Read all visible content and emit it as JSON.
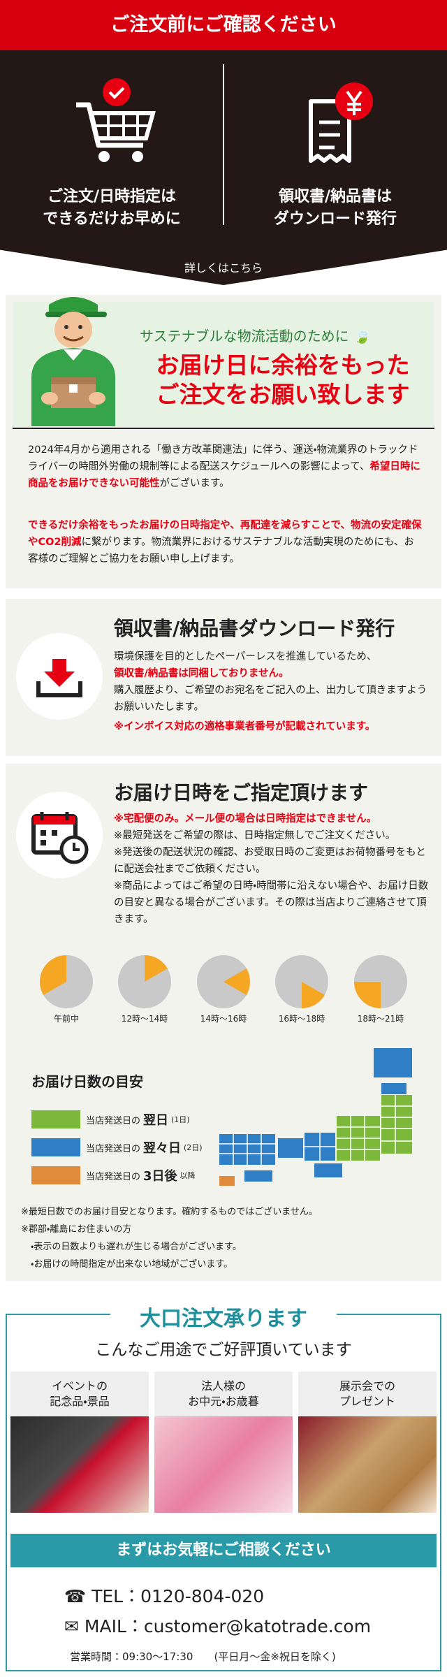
{
  "banner": {
    "title": "ご注文前にご確認ください",
    "items": [
      {
        "lines": [
          "ご注文/日時指定は",
          "できるだけお早めに"
        ]
      },
      {
        "lines": [
          "領収書/納品書は",
          "ダウンロード発行"
        ]
      }
    ],
    "link": "詳しくはこちら"
  },
  "sustainable": {
    "lead": "サステナブルな物流活動のために",
    "headline": [
      "お届け日に余裕をもった",
      "ご注文をお願い致します"
    ],
    "paragraph1": [
      "2024年4月から適用される「働き方改革関連法」に伴う、運送・物流業界のトラックドライバーの時間外労働の規制等による配送スケジュールへの影響によって、",
      "希望日時に商品をお届けできない可能性",
      "がございます。"
    ],
    "paragraph2": [
      "できるだけ余裕をもったお届けの日時指定や、再配達を減らすことで、物流の安定確保やCO2削減",
      "に繋がります。物流業界におけるサステナブルな活動実現のためにも、お客様のご理解とご協力をお願い申し上げます。"
    ]
  },
  "receipt": {
    "title": "領収書/納品書ダウンロード発行",
    "lines": [
      "環境保護を目的としたペーパーレスを推進しているため、",
      "領収書/納品書は同梱しておりません。",
      "購入履歴より、ご希望のお宛名をご記入の上、出力して頂きますようお願いいたします。",
      "※インボイス対応の適格事業者番号が記載されています。"
    ]
  },
  "delivery": {
    "title": "お届け日時をご指定頂けます",
    "notes": [
      "※宅配便のみ。メール便の場合は日時指定はできません。",
      "※最短発送をご希望の際は、日時指定無しでご注文ください。",
      "※発送後の配送状況の確認、お受取日時のご変更はお荷物番号をもとに配送会社までご依頼ください。",
      "※商品によってはご希望の日時・時間帯に沿えない場合や、お届け日数の目安と異なる場合がございます。その際は当店よりご連絡させて頂きます。"
    ],
    "slots": [
      "午前中",
      "12時〜14時",
      "14時〜16時",
      "16時〜18時",
      "18時〜21時"
    ],
    "days_title": "お届け日数の目安",
    "legend": [
      {
        "prefix": "当店発送日の",
        "main": "翌日",
        "suffix": "(1日)",
        "color": "#7cb83a"
      },
      {
        "prefix": "当店発送日の",
        "main": "翌々日",
        "suffix": "(2日)",
        "color": "#2f7fc6"
      },
      {
        "prefix": "当店発送日の",
        "main": "3日後",
        "suffix": "以降",
        "color": "#e08a3c"
      }
    ],
    "footnotes": [
      "※最短日数でのお届け目安となります。確約するものではございません。",
      "※郡部・離島にお住まいの方",
      "・表示の日数よりも遅れが生じる場合がございます。",
      "・お届けの時間指定が出来ない地域がございます。"
    ]
  },
  "bulk": {
    "title": "大口注文承ります",
    "subtitle": "こんなご用途でご好評頂いています",
    "cards": [
      {
        "lines": [
          "イベントの",
          "記念品・景品"
        ]
      },
      {
        "lines": [
          "法人様の",
          "お中元・お歳暮"
        ]
      },
      {
        "lines": [
          "展示会での",
          "プレゼント"
        ]
      }
    ],
    "button": "まずはお気軽にご相談ください",
    "tel": "TEL：0120-804-020",
    "mail": "MAIL：customer@katotrade.com",
    "hours": "営業時間：09:30〜17:30",
    "days": "(平日月〜金※祝日を除く)"
  }
}
